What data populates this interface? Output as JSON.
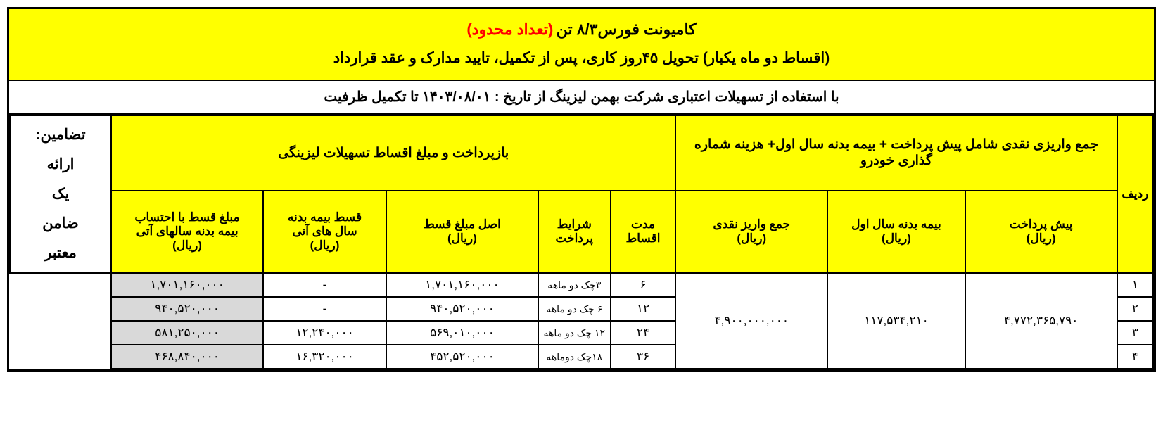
{
  "title": {
    "main": "کامیونت فورس۸/۳ تن",
    "limited": "(تعداد محدود)",
    "sub": "(اقساط دو ماه یکبار) تحویل ۴۵روز کاری، پس از تکمیل، تایید مدارک و عقد قرارداد"
  },
  "date_bar": "با استفاده از تسهیلات اعتباری شرکت بهمن لیزینگ از تاریخ : ۱۴۰۳/۰۸/۰۱  تا تکمیل ظرفیت",
  "columns": {
    "row": "ردیف",
    "deposit_group": "جمع واریزی نقدی شامل پیش پرداخت + بیمه بدنه سال اول+ هزینه شماره گذاری خودرو",
    "pish": "پیش پرداخت\n(ریال)",
    "bime1": "بیمه بدنه سال اول\n(ریال)",
    "jam": "جمع واریز نقدی\n(ریال)",
    "repay_group": "بازپرداخت و مبلغ اقساط تسهیلات لیزینگی",
    "modat": "مدت اقساط",
    "sharayet": "شرایط پرداخت",
    "asl": "اصل مبلغ قسط\n(ریال)",
    "ghest_bime": "قسط بیمه بدنه\nسال های آتی\n(ریال)",
    "total": "مبلغ قسط با احتساب\nبیمه بدنه سالهای آتی\n(ریال)",
    "guarantee": "تضامین:\nارائه\nیک\nضامن\nمعتبر"
  },
  "shared": {
    "pish": "۴,۷۷۲,۳۶۵,۷۹۰",
    "bime1": "۱۱۷,۵۳۴,۲۱۰",
    "jam": "۴,۹۰۰,۰۰۰,۰۰۰"
  },
  "rows": [
    {
      "no": "۱",
      "modat": "۶",
      "sharayet": "۳چک دو ماهه",
      "asl": "۱,۷۰۱,۱۶۰,۰۰۰",
      "bime": "-",
      "total": "۱,۷۰۱,۱۶۰,۰۰۰"
    },
    {
      "no": "۲",
      "modat": "۱۲",
      "sharayet": "۶ چک دو ماهه",
      "asl": "۹۴۰,۵۲۰,۰۰۰",
      "bime": "-",
      "total": "۹۴۰,۵۲۰,۰۰۰"
    },
    {
      "no": "۳",
      "modat": "۲۴",
      "sharayet": "۱۲ چک دو ماهه",
      "asl": "۵۶۹,۰۱۰,۰۰۰",
      "bime": "۱۲,۲۴۰,۰۰۰",
      "total": "۵۸۱,۲۵۰,۰۰۰"
    },
    {
      "no": "۴",
      "modat": "۳۶",
      "sharayet": "۱۸چک دوماهه",
      "asl": "۴۵۲,۵۲۰,۰۰۰",
      "bime": "۱۶,۳۲۰,۰۰۰",
      "total": "۴۶۸,۸۴۰,۰۰۰"
    }
  ],
  "style": {
    "header_bg": "#ffff00",
    "grey_bg": "#d9d9d9",
    "red": "#ff0000",
    "border": "#000000"
  }
}
